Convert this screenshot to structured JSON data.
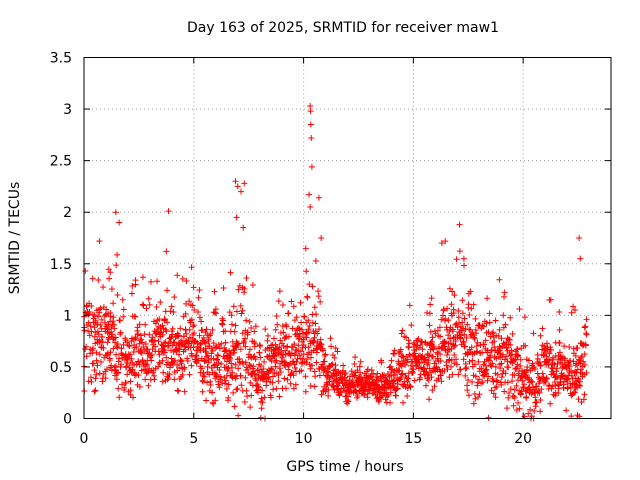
{
  "chart_data": {
    "type": "scatter",
    "title": "Day 163 of 2025, SRMTID for receiver maw1",
    "xlabel": "GPS time / hours",
    "ylabel": "SRMTID / TECUs",
    "xlim": [
      0,
      24
    ],
    "ylim": [
      0,
      3.5
    ],
    "xticks": [
      0,
      5,
      10,
      15,
      20
    ],
    "yticks": [
      0,
      0.5,
      1,
      1.5,
      2,
      2.5,
      3,
      3.5
    ],
    "xtick_labels": [
      "0",
      "5",
      "10",
      "15",
      "20"
    ],
    "ytick_labels": [
      "0",
      "0.5",
      "1",
      "1.5",
      "2",
      "2.5",
      "3",
      "3.5"
    ],
    "grid": true,
    "marker": "+",
    "color": "#ff0000",
    "series_envelope": {
      "hours": [
        0,
        0.5,
        1,
        1.5,
        2,
        2.5,
        3,
        3.5,
        4,
        4.5,
        5,
        5.5,
        6,
        6.5,
        7,
        7.5,
        8,
        8.5,
        9,
        9.5,
        10,
        10.5,
        11,
        11.5,
        12,
        12.5,
        13,
        13.5,
        14,
        14.5,
        15,
        15.5,
        16,
        16.5,
        17,
        17.5,
        18,
        18.5,
        19,
        19.5,
        20,
        20.5,
        21,
        21.5,
        22,
        22.5,
        22.9
      ],
      "typical": [
        0.75,
        0.75,
        0.8,
        0.7,
        0.55,
        0.7,
        0.65,
        0.75,
        0.7,
        0.65,
        0.8,
        0.6,
        0.55,
        0.55,
        0.65,
        0.65,
        0.45,
        0.5,
        0.6,
        0.65,
        0.7,
        0.8,
        0.45,
        0.35,
        0.3,
        0.35,
        0.35,
        0.3,
        0.35,
        0.5,
        0.6,
        0.55,
        0.6,
        0.7,
        0.8,
        0.7,
        0.6,
        0.55,
        0.6,
        0.5,
        0.4,
        0.3,
        0.55,
        0.5,
        0.45,
        0.4,
        0.7
      ],
      "spread": [
        0.45,
        0.5,
        0.55,
        0.5,
        0.45,
        0.45,
        0.45,
        0.45,
        0.4,
        0.4,
        0.4,
        0.45,
        0.4,
        0.45,
        0.55,
        0.5,
        0.45,
        0.45,
        0.4,
        0.4,
        0.45,
        0.45,
        0.3,
        0.2,
        0.15,
        0.15,
        0.15,
        0.15,
        0.2,
        0.35,
        0.35,
        0.3,
        0.4,
        0.45,
        0.5,
        0.5,
        0.45,
        0.45,
        0.45,
        0.45,
        0.45,
        0.35,
        0.4,
        0.35,
        0.35,
        0.4,
        0.5
      ]
    },
    "peaks": [
      {
        "x": 1.45,
        "y": 2.0
      },
      {
        "x": 1.6,
        "y": 1.9
      },
      {
        "x": 0.7,
        "y": 1.72
      },
      {
        "x": 3.85,
        "y": 2.01
      },
      {
        "x": 3.75,
        "y": 1.62
      },
      {
        "x": 6.9,
        "y": 2.3
      },
      {
        "x": 7.0,
        "y": 2.25
      },
      {
        "x": 7.15,
        "y": 2.2
      },
      {
        "x": 7.3,
        "y": 2.28
      },
      {
        "x": 6.95,
        "y": 1.95
      },
      {
        "x": 7.25,
        "y": 1.85
      },
      {
        "x": 10.3,
        "y": 3.03
      },
      {
        "x": 10.32,
        "y": 2.98
      },
      {
        "x": 10.33,
        "y": 2.85
      },
      {
        "x": 10.35,
        "y": 2.72
      },
      {
        "x": 10.38,
        "y": 2.44
      },
      {
        "x": 10.25,
        "y": 2.17
      },
      {
        "x": 10.3,
        "y": 2.05
      },
      {
        "x": 10.7,
        "y": 2.14
      },
      {
        "x": 10.1,
        "y": 1.65
      },
      {
        "x": 10.8,
        "y": 1.75
      },
      {
        "x": 16.3,
        "y": 1.7
      },
      {
        "x": 16.45,
        "y": 1.72
      },
      {
        "x": 17.1,
        "y": 1.88
      },
      {
        "x": 17.3,
        "y": 1.55
      },
      {
        "x": 22.55,
        "y": 1.75
      },
      {
        "x": 22.6,
        "y": 1.55
      },
      {
        "x": 12.6,
        "y": 0.55
      }
    ]
  }
}
